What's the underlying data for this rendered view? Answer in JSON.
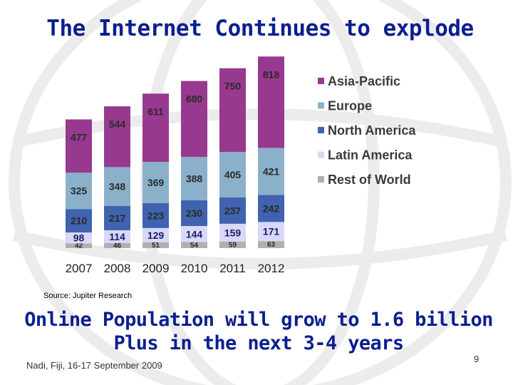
{
  "slide": {
    "title": "The Internet Continues to explode",
    "source": "Source: Jupiter Research",
    "headline_line1": "Online Population will grow to 1.6 billion",
    "headline_line2": "Plus in the next 3-4 years",
    "footer": "Nadi, Fiji, 16-17 September 2009",
    "page_number": "9"
  },
  "chart_data": {
    "type": "bar",
    "stacked": true,
    "categories": [
      "2007",
      "2008",
      "2009",
      "2010",
      "2011",
      "2012"
    ],
    "series": [
      {
        "name": "Rest of World",
        "color": "#b0b0b0",
        "values": [
          42,
          46,
          51,
          54,
          59,
          63
        ]
      },
      {
        "name": "Latin America",
        "color": "#d8d8f8",
        "values": [
          98,
          114,
          129,
          144,
          159,
          171
        ]
      },
      {
        "name": "North America",
        "color": "#3f63ae",
        "values": [
          210,
          217,
          223,
          230,
          237,
          242
        ]
      },
      {
        "name": "Europe",
        "color": "#8ab1c9",
        "values": [
          325,
          348,
          369,
          388,
          405,
          421
        ]
      },
      {
        "name": "Asia-Pacific",
        "color": "#97398f",
        "values": [
          477,
          544,
          611,
          680,
          750,
          818
        ]
      }
    ],
    "legend_order": [
      "Asia-Pacific",
      "Europe",
      "North America",
      "Latin America",
      "Rest of World"
    ],
    "legend_position": "right",
    "grid": false
  }
}
